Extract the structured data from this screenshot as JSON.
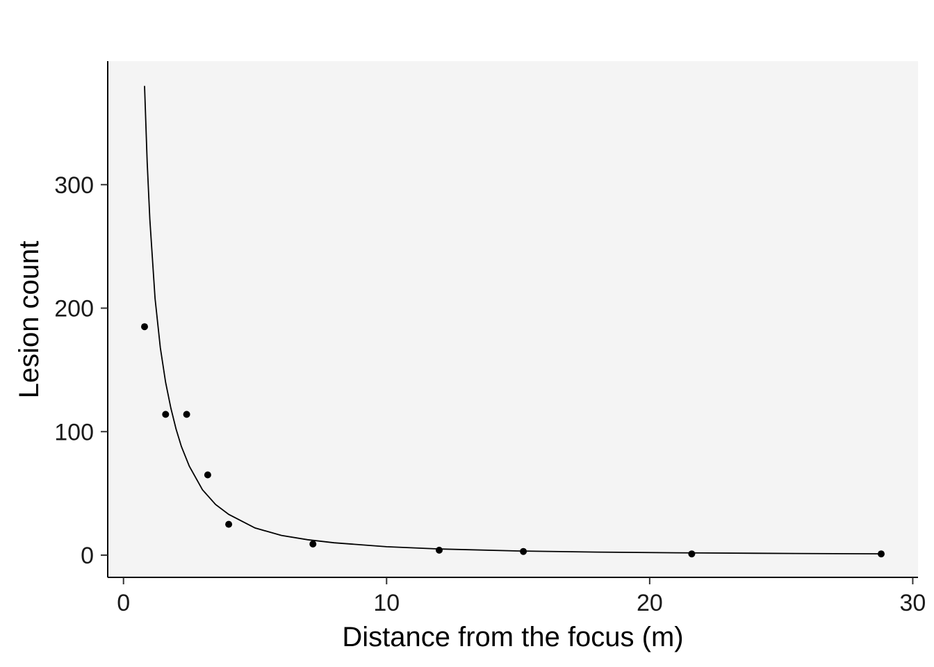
{
  "chart_data": {
    "type": "scatter",
    "title": "",
    "xlabel": "Distance from the focus (m)",
    "ylabel": "Lesion count",
    "xlim": [
      -0.6,
      30.2
    ],
    "ylim": [
      -18,
      400
    ],
    "x_ticks": [
      0,
      10,
      20,
      30
    ],
    "x_tick_labels": [
      "0",
      "10",
      "20",
      "30"
    ],
    "y_ticks": [
      0,
      100,
      200,
      300
    ],
    "y_tick_labels": [
      "0",
      "100",
      "200",
      "300"
    ],
    "grid": false,
    "legend": "none",
    "panel_background": "#f4f4f4",
    "points": {
      "x": [
        0.8,
        1.6,
        2.4,
        3.2,
        4.0,
        7.2,
        12.0,
        15.2,
        21.6,
        28.8
      ],
      "y": [
        185,
        114,
        114,
        65,
        25,
        9,
        4,
        3,
        1,
        1
      ]
    },
    "fit_curve": {
      "x": [
        0.8,
        0.9,
        1.0,
        1.2,
        1.4,
        1.6,
        1.8,
        2.0,
        2.2,
        2.5,
        3.0,
        3.5,
        4.0,
        5.0,
        6.0,
        7.0,
        8.0,
        10.0,
        12.0,
        15.0,
        18.0,
        21.0,
        24.0,
        27.0,
        28.8
      ],
      "y": [
        380,
        318,
        272,
        208,
        168,
        140,
        119,
        102,
        88,
        72,
        53,
        41,
        33,
        22,
        16,
        12.5,
        10,
        6.8,
        5,
        3.4,
        2.5,
        1.9,
        1.5,
        1.2,
        1.05
      ]
    }
  }
}
